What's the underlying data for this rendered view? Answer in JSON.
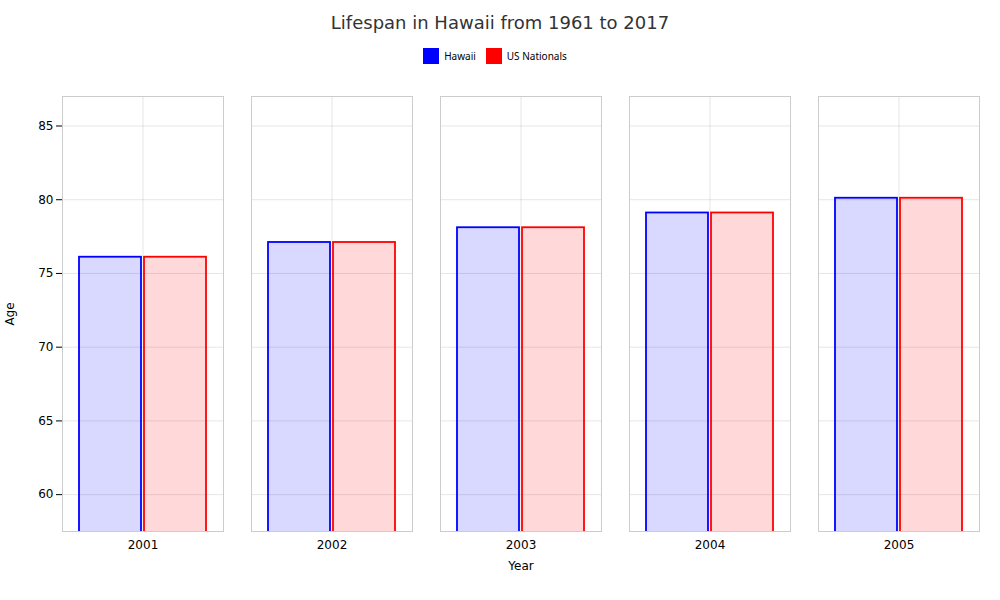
{
  "chart_data": {
    "type": "bar",
    "title": "Lifespan in Hawaii from 1961 to 2017",
    "x_label": "Year",
    "y_label": "Age",
    "categories": [
      2001,
      2002,
      2003,
      2004,
      2005
    ],
    "series": [
      {
        "name": "Hawaii",
        "color": "#0000ff",
        "values": [
          76.1,
          77.1,
          78.1,
          79.1,
          80.1
        ]
      },
      {
        "name": "US Nationals",
        "color": "#ff0000",
        "values": [
          76.1,
          77.1,
          78.1,
          79.1,
          80.1
        ]
      }
    ],
    "ylim": [
      57.5,
      87
    ],
    "yticks": [
      60,
      65,
      70,
      75,
      80,
      85
    ],
    "grid": true,
    "legend": "top"
  }
}
